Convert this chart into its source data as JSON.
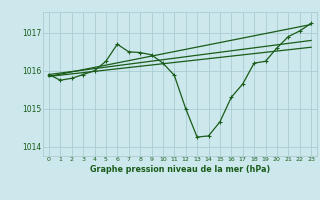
{
  "xlabel": "Graphe pression niveau de la mer (hPa)",
  "bg_color": "#cce8ec",
  "grid_color": "#aaccd4",
  "line_color": "#1a5c1a",
  "text_color": "#1a5c1a",
  "ylim": [
    1013.75,
    1017.55
  ],
  "xlim": [
    -0.5,
    23.5
  ],
  "yticks": [
    1014,
    1015,
    1016,
    1017
  ],
  "xticks": [
    0,
    1,
    2,
    3,
    4,
    5,
    6,
    7,
    8,
    9,
    10,
    11,
    12,
    13,
    14,
    15,
    16,
    17,
    18,
    19,
    20,
    21,
    22,
    23
  ],
  "main_x": [
    0,
    1,
    2,
    3,
    4,
    5,
    6,
    7,
    8,
    9,
    10,
    11,
    12,
    13,
    14,
    15,
    16,
    17,
    18,
    19,
    20,
    21,
    22,
    23
  ],
  "main_y": [
    1015.9,
    1015.75,
    1015.8,
    1015.9,
    1016.0,
    1016.25,
    1016.7,
    1016.5,
    1016.48,
    1016.42,
    1016.2,
    1015.88,
    1015.0,
    1014.25,
    1014.28,
    1014.65,
    1015.3,
    1015.65,
    1016.2,
    1016.25,
    1016.6,
    1016.9,
    1017.05,
    1017.25
  ],
  "trend1_x": [
    0,
    23
  ],
  "trend1_y": [
    1015.85,
    1017.22
  ],
  "trend2_x": [
    0,
    23
  ],
  "trend2_y": [
    1015.9,
    1016.8
  ],
  "trend3_x": [
    0,
    23
  ],
  "trend3_y": [
    1015.85,
    1016.62
  ]
}
